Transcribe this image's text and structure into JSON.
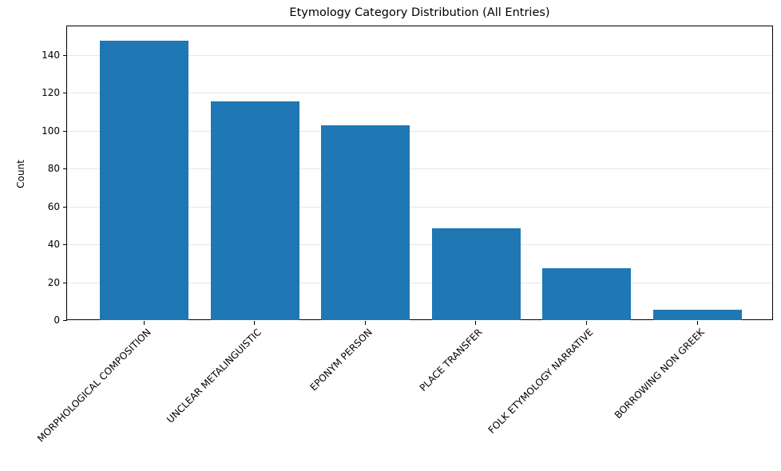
{
  "chart_data": {
    "type": "bar",
    "title": "Etymology Category Distribution (All Entries)",
    "xlabel": "",
    "ylabel": "Count",
    "categories": [
      "MORPHOLOGICAL COMPOSITION",
      "UNCLEAR METALINGUISTIC",
      "EPONYM PERSON",
      "PLACE TRANSFER",
      "FOLK ETYMOLOGY NARRATIVE",
      "BORROWING NON GREEK"
    ],
    "values": [
      148,
      116,
      103,
      49,
      28,
      6
    ],
    "ylim": [
      0,
      155.4
    ],
    "yticks": [
      0,
      20,
      40,
      60,
      80,
      100,
      120,
      140
    ],
    "grid": "y",
    "bar_color": "#1f77b4",
    "xtick_rotation": 45
  }
}
